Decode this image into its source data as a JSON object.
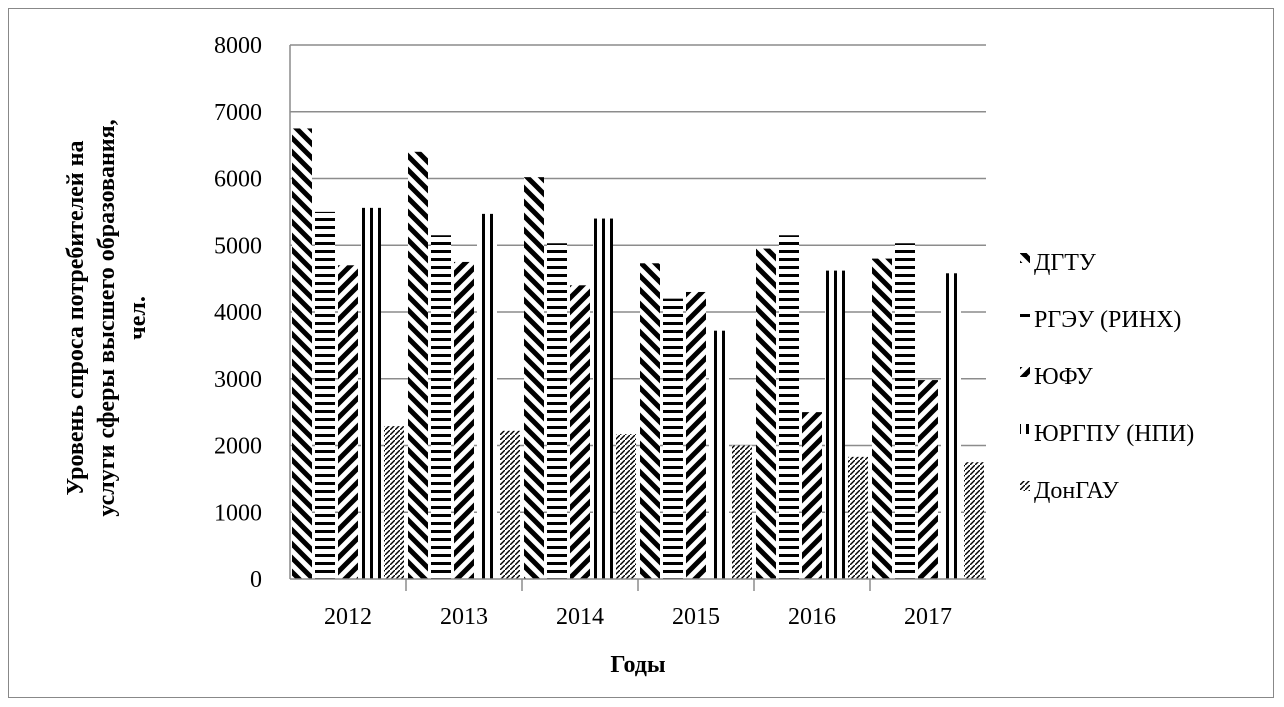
{
  "chart_data": {
    "type": "bar",
    "categories": [
      "2012",
      "2013",
      "2014",
      "2015",
      "2016",
      "2017"
    ],
    "series": [
      {
        "name": "ДГТУ",
        "values": [
          6750,
          6400,
          6020,
          4730,
          4950,
          4800
        ]
      },
      {
        "name": "РГЭУ (РИНХ)",
        "values": [
          5500,
          5150,
          5030,
          4200,
          5150,
          5030
        ]
      },
      {
        "name": "ЮФУ",
        "values": [
          4700,
          4750,
          4400,
          4300,
          2500,
          2980
        ]
      },
      {
        "name": "ЮРГПУ (НПИ)",
        "values": [
          5560,
          5470,
          5400,
          3720,
          4620,
          4580
        ]
      },
      {
        "name": "ДонГАУ",
        "values": [
          2290,
          2220,
          2170,
          2000,
          1830,
          1750
        ]
      }
    ],
    "yticks": [
      "0",
      "1000",
      "2000",
      "3000",
      "4000",
      "5000",
      "6000",
      "7000",
      "8000"
    ],
    "ylim": [
      0,
      8000
    ],
    "xlabel": "Годы",
    "ylabel_lines": [
      "Уровень спроса потребителей  на",
      "услуги сферы высшего образования,",
      "чел."
    ],
    "grid": true,
    "legend_position": "right"
  }
}
